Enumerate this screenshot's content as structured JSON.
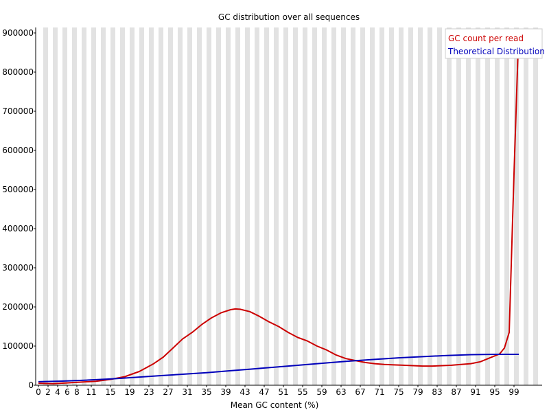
{
  "chart_data": {
    "type": "line",
    "title": "GC distribution over all sequences",
    "xlabel": "Mean GC content (%)",
    "ylabel": "",
    "xlim": [
      0,
      100
    ],
    "ylim": [
      0,
      900000
    ],
    "x_tick_labels": [
      "0",
      "2",
      "4",
      "6",
      "8",
      "11",
      "15",
      "19",
      "23",
      "27",
      "31",
      "35",
      "39",
      "43",
      "47",
      "51",
      "55",
      "59",
      "63",
      "67",
      "71",
      "75",
      "79",
      "83",
      "87",
      "91",
      "95",
      "99"
    ],
    "y_ticks": [
      0,
      100000,
      200000,
      300000,
      400000,
      500000,
      600000,
      700000,
      800000,
      900000
    ],
    "y_tick_labels": [
      "0",
      "100000",
      "200000",
      "300000",
      "400000",
      "500000",
      "600000",
      "700000",
      "800000",
      "900000"
    ],
    "grid": "alternating vertical bands",
    "legend_position": "top-right",
    "series": [
      {
        "name": "GC count per read",
        "color": "#cc0000",
        "points": [
          [
            0,
            5000
          ],
          [
            3,
            4000
          ],
          [
            6,
            6000
          ],
          [
            9,
            8000
          ],
          [
            12,
            10000
          ],
          [
            15,
            15000
          ],
          [
            18,
            22000
          ],
          [
            21,
            35000
          ],
          [
            24,
            55000
          ],
          [
            26,
            72000
          ],
          [
            28,
            95000
          ],
          [
            30,
            118000
          ],
          [
            32,
            135000
          ],
          [
            34,
            155000
          ],
          [
            36,
            172000
          ],
          [
            38,
            185000
          ],
          [
            40,
            193000
          ],
          [
            41,
            195000
          ],
          [
            42,
            194000
          ],
          [
            44,
            188000
          ],
          [
            46,
            176000
          ],
          [
            48,
            162000
          ],
          [
            50,
            150000
          ],
          [
            52,
            135000
          ],
          [
            54,
            122000
          ],
          [
            56,
            113000
          ],
          [
            58,
            100000
          ],
          [
            60,
            90000
          ],
          [
            62,
            77000
          ],
          [
            64,
            68000
          ],
          [
            66,
            63000
          ],
          [
            68,
            58000
          ],
          [
            70,
            55000
          ],
          [
            72,
            53000
          ],
          [
            74,
            52000
          ],
          [
            76,
            51000
          ],
          [
            78,
            50000
          ],
          [
            80,
            49000
          ],
          [
            82,
            49000
          ],
          [
            84,
            50000
          ],
          [
            86,
            51000
          ],
          [
            88,
            53000
          ],
          [
            90,
            55000
          ],
          [
            92,
            60000
          ],
          [
            94,
            70000
          ],
          [
            96,
            80000
          ],
          [
            97,
            95000
          ],
          [
            98,
            135000
          ],
          [
            99,
            540000
          ],
          [
            100,
            910000
          ]
        ]
      },
      {
        "name": "Theoretical Distribution",
        "color": "#0000bb",
        "points": [
          [
            0,
            9000
          ],
          [
            5,
            10500
          ],
          [
            10,
            13000
          ],
          [
            15,
            16000
          ],
          [
            20,
            20000
          ],
          [
            25,
            24000
          ],
          [
            30,
            28000
          ],
          [
            35,
            32000
          ],
          [
            40,
            37000
          ],
          [
            45,
            42000
          ],
          [
            50,
            47000
          ],
          [
            55,
            52000
          ],
          [
            60,
            57000
          ],
          [
            65,
            62000
          ],
          [
            70,
            66000
          ],
          [
            75,
            70000
          ],
          [
            80,
            73000
          ],
          [
            85,
            76000
          ],
          [
            90,
            78000
          ],
          [
            95,
            79000
          ],
          [
            100,
            79000
          ]
        ]
      }
    ]
  }
}
